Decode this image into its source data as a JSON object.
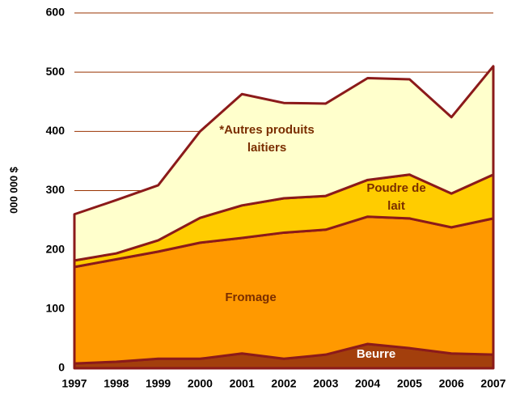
{
  "chart_data": {
    "type": "area",
    "stacked": true,
    "y_label": "000 000 $",
    "categories": [
      "1997",
      "1998",
      "1999",
      "2000",
      "2001",
      "2002",
      "2003",
      "2004",
      "2005",
      "2006",
      "2007"
    ],
    "series": [
      {
        "name": "Beurre",
        "color": "#a33f0c",
        "values": [
          8,
          11,
          16,
          16,
          25,
          16,
          23,
          41,
          34,
          25,
          23
        ]
      },
      {
        "name": "Fromage",
        "color": "#ff9900",
        "values": [
          163,
          173,
          181,
          196,
          195,
          213,
          211,
          215,
          219,
          213,
          230
        ]
      },
      {
        "name": "Poudre de lait",
        "color": "#ffcc00",
        "values": [
          11,
          10,
          19,
          42,
          55,
          58,
          57,
          62,
          74,
          57,
          74
        ]
      },
      {
        "name": "*Autres produits laitiers",
        "color": "#ffffcc",
        "values": [
          78,
          90,
          93,
          146,
          188,
          161,
          156,
          172,
          161,
          129,
          183
        ]
      }
    ],
    "ylim": [
      0,
      600
    ],
    "yticks": [
      0,
      100,
      200,
      300,
      400,
      500,
      600
    ],
    "grid": true
  }
}
